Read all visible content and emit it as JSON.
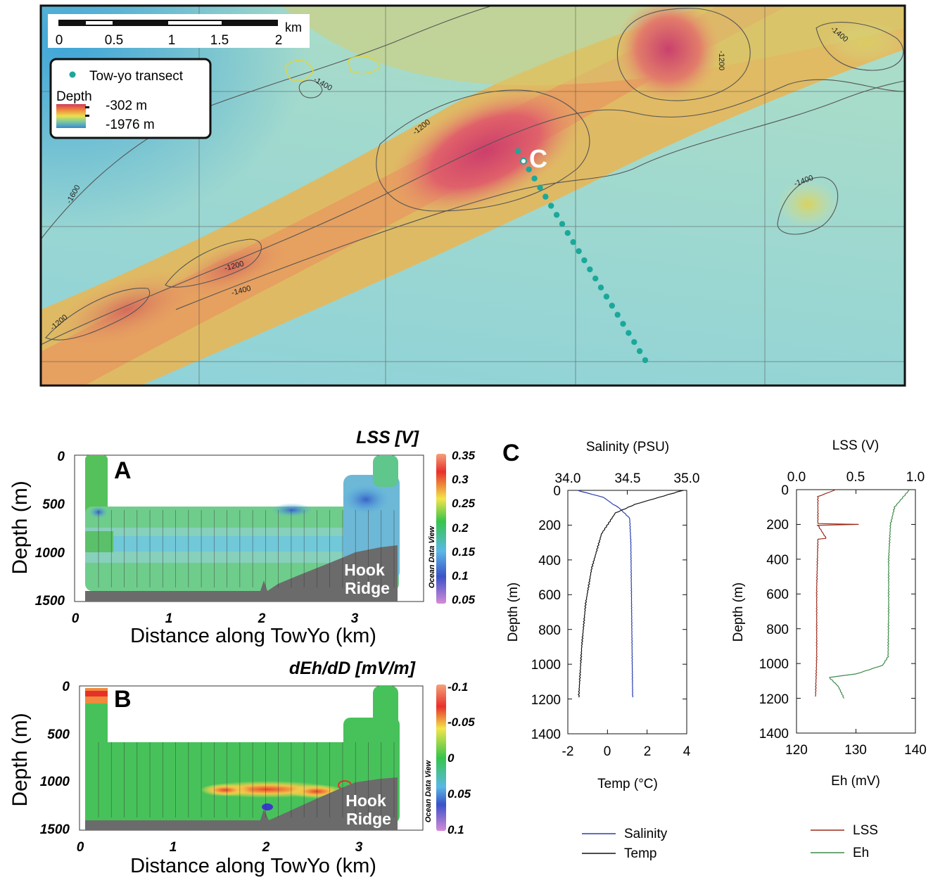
{
  "map": {
    "scale_unit": "km",
    "scale_ticks": [
      "0",
      "0.5",
      "1",
      "1.5",
      "2"
    ],
    "legend_transect": "Tow-yo transect",
    "legend_depth_title": "Depth",
    "legend_depth_max": "-302 m",
    "legend_depth_min": "-1976 m",
    "site_label": "C",
    "contour_labels": [
      "-1400",
      "-1200",
      "-1400",
      "-1200",
      "-1600",
      "-1400",
      "-1200",
      "-1400",
      "-1200"
    ],
    "transect_color": "#1aa89a"
  },
  "panelA": {
    "title": "LSS [V]",
    "letter": "A",
    "ridge_label_1": "Hook",
    "ridge_label_2": "Ridge",
    "xlabel": "Distance along TowYo (km)",
    "ylabel": "Depth (m)",
    "xticks": [
      "0",
      "1",
      "2",
      "3"
    ],
    "yticks": [
      "0",
      "500",
      "1000",
      "1500"
    ],
    "colorbar_ticks": [
      "0.35",
      "0.3",
      "0.25",
      "0.2",
      "0.15",
      "0.1",
      "0.05"
    ],
    "colorbar_label": "Ocean Data View"
  },
  "panelB": {
    "title": "dEh/dD [mV/m]",
    "letter": "B",
    "ridge_label_1": "Hook",
    "ridge_label_2": "Ridge",
    "xlabel": "Distance along TowYo (km)",
    "ylabel": "Depth (m)",
    "xticks": [
      "0",
      "1",
      "2",
      "3"
    ],
    "yticks": [
      "0",
      "500",
      "1000",
      "1500"
    ],
    "colorbar_ticks": [
      "-0.1",
      "-0.05",
      "0",
      "0.05",
      "0.1"
    ],
    "colorbar_label": "Ocean Data View"
  },
  "panelC": {
    "letter": "C",
    "left_top_title": "Salinity (PSU)",
    "left_top_ticks": [
      "34.0",
      "34.5",
      "35.0"
    ],
    "left_bottom_ticks": [
      "-2",
      "0",
      "2",
      "4"
    ],
    "left_bottom_label": "Temp (°C)",
    "left_yticks": [
      "0",
      "200",
      "400",
      "600",
      "800",
      "1000",
      "1200",
      "1400"
    ],
    "left_ylabel": "Depth (m)",
    "left_legend_salinity": "Salinity",
    "left_legend_temp": "Temp",
    "right_top_title": "LSS (V)",
    "right_top_ticks": [
      "0.0",
      "0.5",
      "1.0"
    ],
    "right_bottom_ticks": [
      "120",
      "130",
      "140"
    ],
    "right_bottom_label": "Eh (mV)",
    "right_yticks": [
      "0",
      "200",
      "400",
      "600",
      "800",
      "1000",
      "1200",
      "1400"
    ],
    "right_ylabel": "Depth (m)",
    "right_legend_lss": "LSS",
    "right_legend_eh": "Eh",
    "colors": {
      "salinity": "#2a3fb0",
      "temp": "#111111",
      "lss": "#9b2a1a",
      "eh": "#3f8a4a"
    }
  },
  "chart_data": [
    {
      "type": "line",
      "title": "",
      "xlabel": "Salinity (PSU) / Temp (°C)",
      "ylabel": "Depth (m)",
      "ylim": [
        1400,
        0
      ],
      "series": [
        {
          "name": "Salinity",
          "x_unit": "PSU",
          "xlim": [
            34.0,
            35.0
          ],
          "x": [
            34.08,
            34.3,
            34.38,
            34.43,
            34.52,
            34.53,
            34.535,
            34.54,
            34.545
          ],
          "y": [
            0,
            40,
            80,
            100,
            160,
            300,
            600,
            900,
            1190
          ]
        },
        {
          "name": "Temp",
          "x_unit": "°C",
          "xlim": [
            -2,
            4
          ],
          "x": [
            3.8,
            2.6,
            1.4,
            0.4,
            -0.3,
            -0.8,
            -1.1,
            -1.3,
            -1.45
          ],
          "y": [
            0,
            40,
            80,
            130,
            250,
            450,
            650,
            900,
            1190
          ]
        }
      ]
    },
    {
      "type": "line",
      "title": "",
      "xlabel": "LSS (V) / Eh (mV)",
      "ylabel": "Depth (m)",
      "ylim": [
        1400,
        0
      ],
      "series": [
        {
          "name": "LSS",
          "x_unit": "V",
          "xlim": [
            0.0,
            1.0
          ],
          "x": [
            0.33,
            0.18,
            0.18,
            0.52,
            0.18,
            0.25,
            0.18,
            0.17,
            0.17,
            0.16
          ],
          "y": [
            0,
            40,
            195,
            200,
            205,
            280,
            285,
            570,
            960,
            1190
          ]
        },
        {
          "name": "Eh",
          "x_unit": "mV",
          "xlim": [
            120,
            140
          ],
          "x": [
            139.0,
            136.5,
            135.8,
            135.5,
            135.5,
            135.4,
            134.5,
            130.0,
            125.5,
            127.0,
            128.0
          ],
          "y": [
            0,
            100,
            200,
            400,
            700,
            960,
            1010,
            1060,
            1080,
            1130,
            1200
          ]
        }
      ]
    }
  ]
}
